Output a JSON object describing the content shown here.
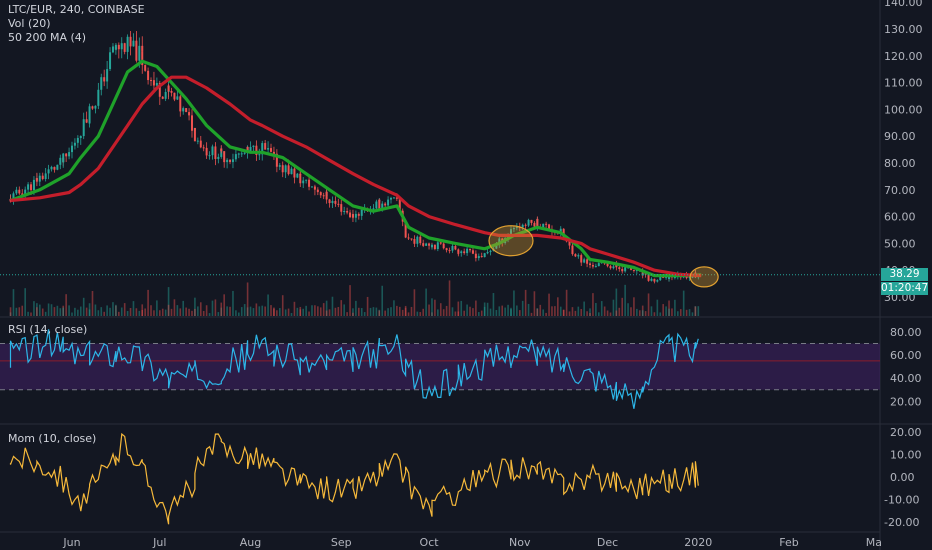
{
  "legend": {
    "symbol": "LTC/EUR, 240, COINBASE",
    "volume": "Vol (20)",
    "ma": "50 200 MA (4)",
    "rsi": "RSI (14, close)",
    "mom": "Mom (10, close)"
  },
  "badges": {
    "price": "38.29",
    "countdown": "01:20:47"
  },
  "colors": {
    "background": "#131722",
    "up": "#26a69a",
    "down": "#ef5350",
    "ma_fast": "#1fa22a",
    "ma_slow": "#c41e2b",
    "rsi": "#2db6e8",
    "momentum": "#f6b93b",
    "rsi_band": "#3b1f5c",
    "highlight": "#e0a030"
  },
  "chart_data": [
    {
      "type": "line",
      "title": "LTC/EUR, 240, COINBASE",
      "x": [
        "2019-05-11",
        "2019-05-21",
        "2019-05-31",
        "2019-06-04",
        "2019-06-10",
        "2019-06-15",
        "2019-06-20",
        "2019-06-25",
        "2019-06-30",
        "2019-07-05",
        "2019-07-10",
        "2019-07-17",
        "2019-07-25",
        "2019-08-01",
        "2019-08-05",
        "2019-08-12",
        "2019-08-20",
        "2019-08-28",
        "2019-09-05",
        "2019-09-12",
        "2019-09-20",
        "2019-09-24",
        "2019-10-01",
        "2019-10-10",
        "2019-10-20",
        "2019-10-25",
        "2019-10-30",
        "2019-11-07",
        "2019-11-15",
        "2019-11-22",
        "2019-11-25",
        "2019-12-01",
        "2019-12-10",
        "2019-12-17",
        "2019-12-25",
        "2020-01-02"
      ],
      "close": [
        66,
        74,
        82,
        92,
        104,
        122,
        124,
        120,
        108,
        106,
        98,
        85,
        82,
        84,
        86,
        79,
        73,
        67,
        60,
        64,
        66,
        52,
        50,
        48,
        45,
        50,
        56,
        58,
        54,
        44,
        42,
        42,
        40,
        36,
        38,
        38.29
      ],
      "series": [
        {
          "name": "50",
          "values": [
            66,
            70,
            76,
            82,
            90,
            102,
            114,
            118,
            116,
            110,
            104,
            94,
            86,
            84,
            84,
            82,
            76,
            70,
            64,
            62,
            64,
            56,
            52,
            50,
            48,
            50,
            53,
            56,
            54,
            48,
            44,
            43,
            41,
            38,
            38,
            38.3
          ]
        },
        {
          "name": "200",
          "values": [
            66,
            67,
            69,
            72,
            78,
            86,
            94,
            102,
            108,
            112,
            112,
            108,
            102,
            96,
            94,
            90,
            86,
            81,
            76,
            72,
            68,
            64,
            60,
            57,
            54,
            53,
            53,
            53,
            52,
            50,
            48,
            46,
            43,
            40,
            38.5,
            38
          ]
        }
      ],
      "price_axis": [
        140,
        130,
        120,
        110,
        100,
        90,
        80,
        70,
        60,
        50,
        40,
        30
      ],
      "xticks": [
        "Jun",
        "Jul",
        "Aug",
        "Sep",
        "Oct",
        "Nov",
        "Dec",
        "2020",
        "Feb",
        "Ma"
      ],
      "annotations": [
        "circle around late October / early November MA cross",
        "circle around early January MA cross"
      ]
    },
    {
      "type": "bar",
      "title": "Vol (20)",
      "values": [
        3,
        5,
        9,
        4,
        3,
        6,
        11,
        4,
        3,
        8,
        5,
        3,
        7,
        4,
        3,
        12,
        4,
        3,
        6,
        3,
        5,
        3,
        9,
        4,
        3,
        5,
        4,
        3,
        10,
        3,
        4,
        3,
        8,
        4,
        3,
        5,
        3,
        4
      ]
    },
    {
      "type": "line",
      "title": "RSI (14, close)",
      "x": [
        "2019-05-11",
        "2019-05-25",
        "2019-06-05",
        "2019-06-20",
        "2019-07-05",
        "2019-07-20",
        "2019-08-05",
        "2019-08-20",
        "2019-09-05",
        "2019-09-20",
        "2019-10-01",
        "2019-10-15",
        "2019-11-01",
        "2019-11-15",
        "2019-12-01",
        "2019-12-10",
        "2019-12-20",
        "2020-01-02"
      ],
      "values": [
        62,
        70,
        58,
        64,
        40,
        45,
        68,
        52,
        55,
        67,
        25,
        47,
        64,
        55,
        38,
        18,
        68,
        62
      ],
      "bands": [
        70,
        30
      ],
      "yticks": [
        80,
        60,
        40,
        20
      ]
    },
    {
      "type": "line",
      "title": "Mom (10, close)",
      "x": [
        "2019-05-11",
        "2019-05-25",
        "2019-06-05",
        "2019-06-20",
        "2019-07-05",
        "2019-07-20",
        "2019-08-05",
        "2019-08-20",
        "2019-09-05",
        "2019-09-20",
        "2019-10-01",
        "2019-10-15",
        "2019-11-01",
        "2019-11-15",
        "2019-12-01",
        "2019-12-10",
        "2019-12-20",
        "2020-01-02"
      ],
      "values": [
        10,
        5,
        -12,
        16,
        -18,
        14,
        8,
        -4,
        -6,
        6,
        -14,
        -3,
        5,
        -2,
        0,
        -4,
        -2,
        1.5
      ],
      "yticks": [
        20,
        10,
        0,
        -10,
        -20
      ]
    }
  ]
}
